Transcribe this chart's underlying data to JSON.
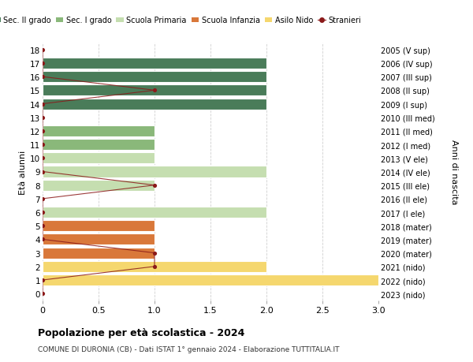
{
  "ages": [
    18,
    17,
    16,
    15,
    14,
    13,
    12,
    11,
    10,
    9,
    8,
    7,
    6,
    5,
    4,
    3,
    2,
    1,
    0
  ],
  "right_labels": [
    "2005 (V sup)",
    "2006 (IV sup)",
    "2007 (III sup)",
    "2008 (II sup)",
    "2009 (I sup)",
    "2010 (III med)",
    "2011 (II med)",
    "2012 (I med)",
    "2013 (V ele)",
    "2014 (IV ele)",
    "2015 (III ele)",
    "2016 (II ele)",
    "2017 (I ele)",
    "2018 (mater)",
    "2019 (mater)",
    "2020 (mater)",
    "2021 (nido)",
    "2022 (nido)",
    "2023 (nido)"
  ],
  "bar_values": [
    0,
    2,
    2,
    2,
    2,
    0,
    1,
    1,
    1,
    2,
    1,
    0,
    2,
    1,
    1,
    1,
    2,
    3,
    0
  ],
  "bar_colors": [
    "#4a7c59",
    "#4a7c59",
    "#4a7c59",
    "#4a7c59",
    "#4a7c59",
    "#8ab87a",
    "#8ab87a",
    "#8ab87a",
    "#c5deb0",
    "#c5deb0",
    "#c5deb0",
    "#c5deb0",
    "#c5deb0",
    "#d9783a",
    "#d9783a",
    "#d9783a",
    "#f5d76e",
    "#f5d76e",
    "#f5d76e"
  ],
  "stranieri_values": [
    0,
    0,
    0,
    1,
    0,
    0,
    0,
    0,
    0,
    0,
    1,
    0,
    0,
    0,
    0,
    1,
    1,
    0,
    0
  ],
  "title": "Popolazione per età scolastica - 2024",
  "subtitle": "COMUNE DI DURONIA (CB) - Dati ISTAT 1° gennaio 2024 - Elaborazione TUTTITALIA.IT",
  "ylabel": "Età alunni",
  "ylabel2": "Anni di nascita",
  "xlim": [
    0,
    3.0
  ],
  "xticks": [
    0,
    0.5,
    1.0,
    1.5,
    2.0,
    2.5,
    3.0
  ],
  "color_sec2": "#4a7c59",
  "color_sec1": "#8ab87a",
  "color_prim": "#c5deb0",
  "color_inf": "#d9783a",
  "color_nido": "#f5d76e",
  "color_stranieri": "#8b1a1a",
  "legend_labels": [
    "Sec. II grado",
    "Sec. I grado",
    "Scuola Primaria",
    "Scuola Infanzia",
    "Asilo Nido",
    "Stranieri"
  ],
  "bar_height": 0.82,
  "background_color": "#ffffff",
  "grid_color": "#d0d0d0"
}
